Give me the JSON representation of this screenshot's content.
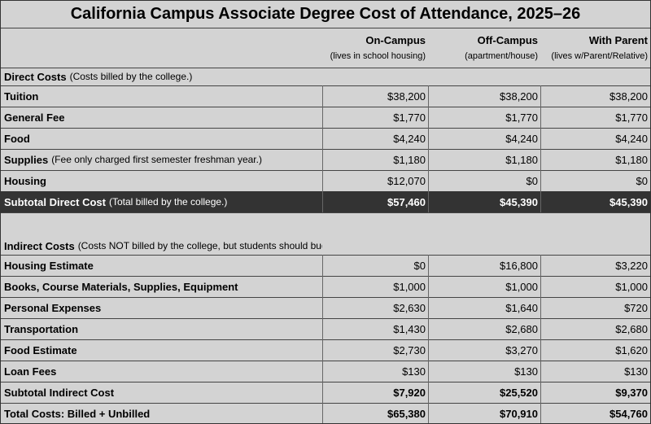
{
  "header": {
    "title": "California Campus Associate Degree Cost of Attendance, 2025–26"
  },
  "columns": [
    {
      "name": "On-Campus",
      "note": "(lives in school housing)"
    },
    {
      "name": "Off-Campus",
      "note": "(apartment/house)"
    },
    {
      "name": "With Parent",
      "note": "(lives w/Parent/Relative)"
    }
  ],
  "direct": {
    "label": "Direct Costs",
    "note": "(Costs billed by the college.)",
    "rows": [
      {
        "label": "Tuition",
        "values": [
          "$38,200",
          "$38,200",
          "$38,200"
        ]
      },
      {
        "label": "General Fee",
        "values": [
          "$1,770",
          "$1,770",
          "$1,770"
        ]
      },
      {
        "label": "Food",
        "values": [
          "$4,240",
          "$4,240",
          "$4,240"
        ]
      },
      {
        "label": "Supplies",
        "note": "(Fee only charged first semester freshman year.)",
        "values": [
          "$1,180",
          "$1,180",
          "$1,180"
        ]
      },
      {
        "label": "Housing",
        "values": [
          "$12,070",
          "$0",
          "$0"
        ]
      }
    ],
    "subtotal": {
      "label": "Subtotal Direct Cost",
      "note": "(Total billed by the college.)",
      "values": [
        "$57,460",
        "$45,390",
        "$45,390"
      ]
    }
  },
  "indirect": {
    "label": "Indirect Costs",
    "note": "(Costs NOT billed by the college, but students should budget for.)",
    "rows": [
      {
        "label": "Housing Estimate",
        "values": [
          "$0",
          "$16,800",
          "$3,220"
        ]
      },
      {
        "label": "Books, Course Materials, Supplies, Equipment",
        "values": [
          "$1,000",
          "$1,000",
          "$1,000"
        ]
      },
      {
        "label": "Personal Expenses",
        "values": [
          "$2,630",
          "$1,640",
          "$720"
        ]
      },
      {
        "label": "Transportation",
        "values": [
          "$1,430",
          "$2,680",
          "$2,680"
        ]
      },
      {
        "label": "Food Estimate",
        "values": [
          "$2,730",
          "$3,270",
          "$1,620"
        ]
      },
      {
        "label": "Loan Fees",
        "values": [
          "$130",
          "$130",
          "$130"
        ]
      }
    ],
    "subtotal": {
      "label": "Subtotal Indirect Cost",
      "values": [
        "$7,920",
        "$25,520",
        "$9,370"
      ]
    }
  },
  "total": {
    "label": "Total Costs: Billed + Unbilled",
    "values": [
      "$65,380",
      "$70,910",
      "$54,760"
    ]
  }
}
